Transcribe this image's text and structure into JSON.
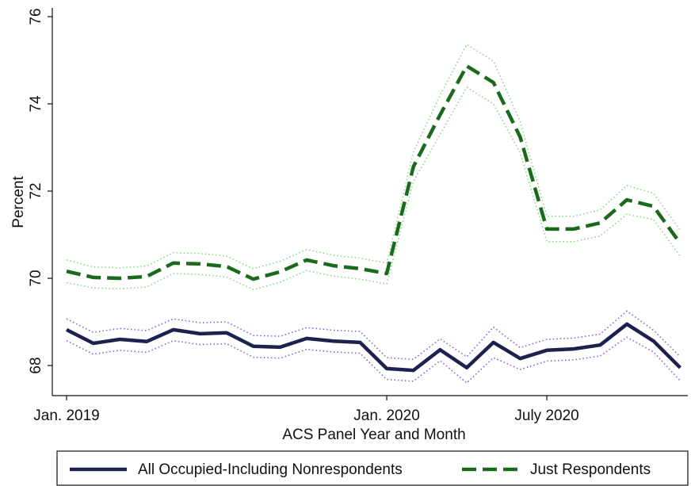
{
  "chart_data": {
    "type": "line",
    "y_label": "Percent",
    "x_label": "ACS Panel Year and Month",
    "categories": [
      "Jan. 2019",
      null,
      null,
      null,
      null,
      null,
      null,
      null,
      null,
      null,
      null,
      null,
      "Jan. 2020",
      null,
      null,
      null,
      null,
      null,
      "July 2020",
      null,
      null,
      null,
      null,
      null
    ],
    "ylim": [
      67.31,
      76.2
    ],
    "yticks": [
      68,
      70,
      72,
      74,
      76
    ],
    "legend": "bottom",
    "series": [
      {
        "name": "All Occupied-Including Nonrespondents",
        "color": "#1c214f",
        "band_color": "#7468d8",
        "dash": "solid",
        "values": [
          68.82,
          68.51,
          68.6,
          68.55,
          68.82,
          68.73,
          68.75,
          68.44,
          68.42,
          68.62,
          68.56,
          68.53,
          67.93,
          67.89,
          68.36,
          67.95,
          68.53,
          68.16,
          68.35,
          68.38,
          68.47,
          68.95,
          68.56,
          67.95
        ],
        "upper": [
          69.07,
          68.76,
          68.85,
          68.8,
          69.07,
          68.98,
          69.0,
          68.69,
          68.67,
          68.87,
          68.81,
          68.78,
          68.18,
          68.14,
          68.61,
          68.2,
          68.88,
          68.41,
          68.6,
          68.63,
          68.72,
          69.25,
          68.81,
          68.2
        ],
        "lower": [
          68.57,
          68.26,
          68.35,
          68.3,
          68.57,
          68.48,
          68.5,
          68.19,
          68.17,
          68.37,
          68.31,
          68.28,
          67.68,
          67.64,
          68.11,
          67.6,
          68.18,
          67.91,
          68.1,
          68.13,
          68.22,
          68.65,
          68.31,
          67.65
        ]
      },
      {
        "name": "Just Respondents",
        "color": "#1b6a1b",
        "band_color": "#86d886",
        "dash": "dashed",
        "values": [
          70.16,
          70.02,
          70.0,
          70.04,
          70.35,
          70.33,
          70.27,
          69.98,
          70.15,
          70.42,
          70.29,
          70.22,
          70.11,
          72.56,
          73.75,
          74.87,
          74.49,
          73.24,
          71.13,
          71.13,
          71.27,
          71.8,
          71.65,
          70.8
        ],
        "upper": [
          70.42,
          70.26,
          70.24,
          70.28,
          70.59,
          70.57,
          70.51,
          70.22,
          70.39,
          70.66,
          70.53,
          70.46,
          70.35,
          72.9,
          74.2,
          75.36,
          74.98,
          73.6,
          71.42,
          71.42,
          71.57,
          72.13,
          71.95,
          71.1
        ],
        "lower": [
          69.9,
          69.78,
          69.76,
          69.8,
          70.11,
          70.09,
          70.03,
          69.74,
          69.91,
          70.18,
          70.05,
          69.98,
          69.87,
          72.22,
          73.3,
          74.38,
          74.0,
          72.88,
          70.84,
          70.84,
          70.97,
          71.47,
          71.35,
          70.5
        ]
      }
    ]
  }
}
